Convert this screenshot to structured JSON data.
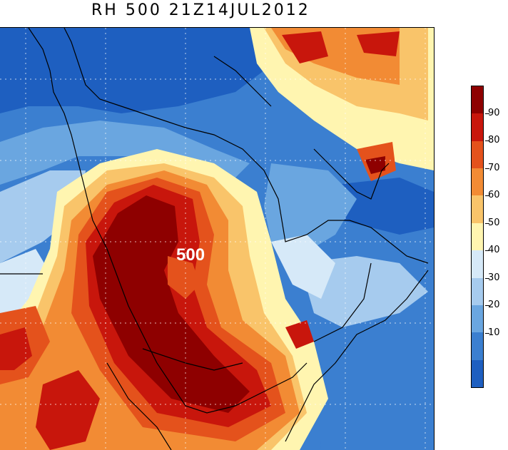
{
  "title": "RH 500 21Z14JUL2012",
  "map": {
    "center_label": "500",
    "colors": {
      "deep_blue": "#1e5fc0",
      "blue": "#3b7fd0",
      "mid_blue": "#6aa6e0",
      "light_blue": "#a6cbee",
      "pale_blue": "#d6e9f8",
      "pale_yellow": "#fff5b0",
      "light_orange": "#f9c46a",
      "orange": "#f28b34",
      "red_orange": "#e4521c",
      "red": "#c8160c",
      "dark_red": "#8e0000"
    }
  },
  "legend": {
    "colors": [
      "#8e0000",
      "#c8160c",
      "#e4521c",
      "#f28b34",
      "#f9c46a",
      "#fff5b0",
      "#d6e9f8",
      "#a6cbee",
      "#6aa6e0",
      "#3b7fd0",
      "#1e5fc0"
    ],
    "labels": [
      "90",
      "80",
      "70",
      "60",
      "50",
      "40",
      "30",
      "20",
      "10"
    ]
  }
}
